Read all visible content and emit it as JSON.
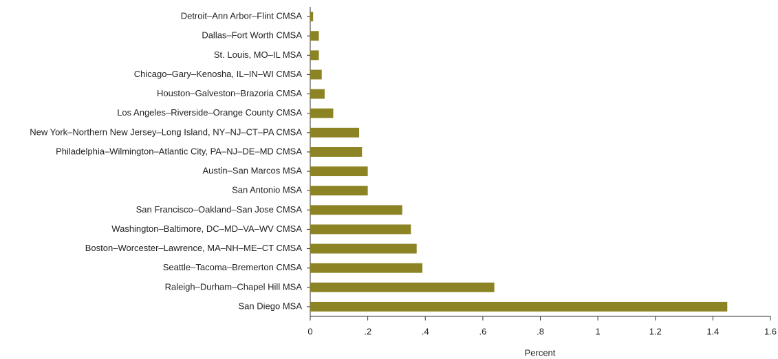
{
  "chart_data": {
    "type": "barh",
    "x_label": "Percent",
    "categories": [
      "Detroit–Ann Arbor–Flint CMSA",
      "Dallas–Fort Worth CMSA",
      "St. Louis, MO–IL MSA",
      "Chicago–Gary–Kenosha, IL–IN–WI CMSA",
      "Houston–Galveston–Brazoria CMSA",
      "Los Angeles–Riverside–Orange County CMSA",
      "New York–Northern New Jersey–Long Island, NY–NJ–CT–PA CMSA",
      "Philadelphia–Wilmington–Atlantic City, PA–NJ–DE–MD CMSA",
      "Austin–San Marcos MSA",
      "San Antonio MSA",
      "San Francisco–Oakland–San Jose CMSA",
      "Washington–Baltimore, DC–MD–VA–WV CMSA",
      "Boston–Worcester–Lawrence, MA–NH–ME–CT CMSA",
      "Seattle–Tacoma–Bremerton CMSA",
      "Raleigh–Durham–Chapel Hill MSA",
      "San Diego MSA"
    ],
    "values": [
      0.01,
      0.03,
      0.03,
      0.04,
      0.05,
      0.08,
      0.17,
      0.18,
      0.2,
      0.2,
      0.32,
      0.35,
      0.37,
      0.39,
      0.64,
      1.45
    ],
    "color": "#8c8424",
    "xlim": [
      0,
      1.6
    ],
    "xticks": [
      0,
      {
        "value": 0.2,
        "label": ".2"
      },
      {
        "value": 0.4,
        "label": ".4"
      },
      {
        "value": 0.6,
        "label": ".6"
      },
      {
        "value": 0.8,
        "label": ".8"
      },
      1,
      1.2,
      1.4,
      1.6
    ]
  }
}
